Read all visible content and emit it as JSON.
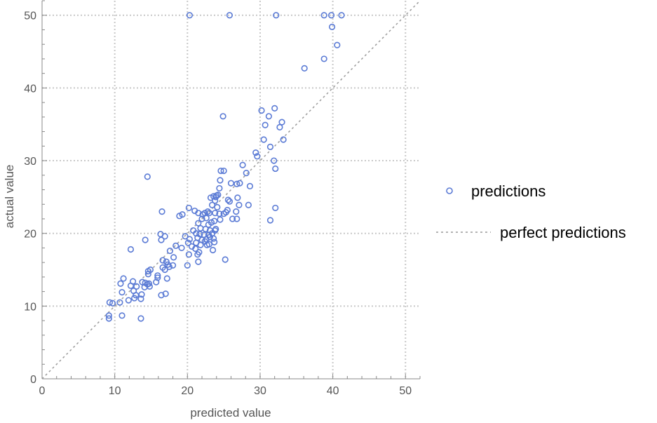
{
  "chart_data": {
    "type": "scatter",
    "xlabel": "predicted value",
    "ylabel": "actual value",
    "xlim": [
      0,
      52
    ],
    "ylim": [
      0,
      52
    ],
    "xticks": [
      0,
      10,
      20,
      30,
      40,
      50
    ],
    "yticks": [
      0,
      10,
      20,
      30,
      40,
      50
    ],
    "grid": true,
    "legend_placement": "right",
    "legend": [
      "predictions",
      "perfect predictions"
    ],
    "colors": {
      "points": "#5b7bd5",
      "reference": "#9a9a9a",
      "grid": "#c8c8c8",
      "axis": "#888888"
    },
    "series": [
      {
        "name": "predictions",
        "points": [
          [
            20.3,
            50
          ],
          [
            25.8,
            50
          ],
          [
            32.2,
            50
          ],
          [
            38.8,
            50
          ],
          [
            39.8,
            50
          ],
          [
            41.2,
            50
          ],
          [
            39.9,
            48.4
          ],
          [
            40.6,
            45.9
          ],
          [
            36.1,
            42.7
          ],
          [
            38.8,
            44
          ],
          [
            24.9,
            36.1
          ],
          [
            30.2,
            36.9
          ],
          [
            31.2,
            36.1
          ],
          [
            32,
            37.2
          ],
          [
            30.7,
            34.9
          ],
          [
            32.7,
            34.6
          ],
          [
            33,
            35.3
          ],
          [
            33.2,
            32.9
          ],
          [
            30.5,
            32.9
          ],
          [
            31.4,
            31.9
          ],
          [
            29.4,
            31.1
          ],
          [
            29.6,
            30.6
          ],
          [
            31.9,
            30
          ],
          [
            32.1,
            28.9
          ],
          [
            27.6,
            29.4
          ],
          [
            24.6,
            28.6
          ],
          [
            25,
            28.6
          ],
          [
            28.1,
            28.3
          ],
          [
            14.5,
            27.8
          ],
          [
            24.5,
            27.3
          ],
          [
            26,
            26.9
          ],
          [
            26.8,
            26.8
          ],
          [
            27.2,
            26.9
          ],
          [
            28.6,
            26.5
          ],
          [
            24.4,
            26.2
          ],
          [
            23.6,
            25.1
          ],
          [
            23.9,
            25
          ],
          [
            24,
            25.2
          ],
          [
            24.2,
            25.3
          ],
          [
            23.2,
            24.9
          ],
          [
            23.8,
            24.5
          ],
          [
            25.6,
            24.6
          ],
          [
            25.8,
            24.4
          ],
          [
            26.9,
            24.9
          ],
          [
            27.1,
            23.9
          ],
          [
            23.4,
            23.9
          ],
          [
            24.1,
            23.6
          ],
          [
            28.4,
            23.9
          ],
          [
            32.1,
            23.5
          ],
          [
            25.5,
            23.2
          ],
          [
            26.7,
            23
          ],
          [
            21.5,
            22.8
          ],
          [
            22.4,
            22.8
          ],
          [
            22.8,
            23
          ],
          [
            22.1,
            22.6
          ],
          [
            23,
            22.8
          ],
          [
            23.8,
            22.8
          ],
          [
            24.4,
            22.7
          ],
          [
            25,
            22.7
          ],
          [
            25.3,
            22.9
          ],
          [
            20.2,
            23.5
          ],
          [
            21,
            23.1
          ],
          [
            19.3,
            22.6
          ],
          [
            18.9,
            22.4
          ],
          [
            16.5,
            23
          ],
          [
            22,
            22
          ],
          [
            22.6,
            22.1
          ],
          [
            23.7,
            21.7
          ],
          [
            24.5,
            21.9
          ],
          [
            26.2,
            22
          ],
          [
            26.8,
            22
          ],
          [
            31.4,
            21.8
          ],
          [
            21.5,
            21.4
          ],
          [
            22.9,
            21.2
          ],
          [
            23.3,
            21.5
          ],
          [
            21.8,
            20.7
          ],
          [
            22.5,
            20.6
          ],
          [
            23.1,
            20.4
          ],
          [
            23.9,
            20.6
          ],
          [
            20.8,
            20.4
          ],
          [
            21.2,
            20
          ],
          [
            21.7,
            19.9
          ],
          [
            22.3,
            19.8
          ],
          [
            22.9,
            19.8
          ],
          [
            23.4,
            20
          ],
          [
            23.8,
            20.4
          ],
          [
            16.3,
            19.9
          ],
          [
            16.9,
            19.6
          ],
          [
            19.7,
            19.6
          ],
          [
            20.3,
            19.2
          ],
          [
            21.4,
            19.4
          ],
          [
            22,
            19.1
          ],
          [
            22.6,
            19.2
          ],
          [
            23.1,
            19.5
          ],
          [
            23.6,
            19.3
          ],
          [
            16.4,
            19.1
          ],
          [
            14.2,
            19.1
          ],
          [
            20.1,
            18.7
          ],
          [
            21.2,
            18.7
          ],
          [
            21.8,
            18.4
          ],
          [
            22.4,
            18.9
          ],
          [
            23,
            18.5
          ],
          [
            23.7,
            18.8
          ],
          [
            18.4,
            18.3
          ],
          [
            19.2,
            18
          ],
          [
            20.6,
            18.2
          ],
          [
            21.1,
            17.9
          ],
          [
            22.7,
            18.4
          ],
          [
            12.2,
            17.8
          ],
          [
            17.6,
            17.6
          ],
          [
            21.6,
            17.4
          ],
          [
            23.5,
            17.7
          ],
          [
            20.2,
            17.1
          ],
          [
            21.4,
            17.1
          ],
          [
            18.1,
            16.7
          ],
          [
            21.5,
            16.1
          ],
          [
            25.2,
            16.4
          ],
          [
            16.6,
            16.3
          ],
          [
            17.1,
            16.1
          ],
          [
            16.6,
            15.3
          ],
          [
            17.3,
            15.7
          ],
          [
            17.5,
            15.4
          ],
          [
            18,
            15.6
          ],
          [
            20,
            15.6
          ],
          [
            16.9,
            15
          ],
          [
            15.9,
            14.2
          ],
          [
            14.6,
            14.8
          ],
          [
            14.9,
            15
          ],
          [
            14.6,
            14.4
          ],
          [
            17.2,
            13.8
          ],
          [
            14.2,
            13.2
          ],
          [
            14.7,
            13.1
          ],
          [
            15.7,
            13.3
          ],
          [
            15.9,
            13.9
          ],
          [
            11.2,
            13.8
          ],
          [
            12.5,
            13.4
          ],
          [
            13.8,
            13.3
          ],
          [
            14.5,
            13
          ],
          [
            10.8,
            13.1
          ],
          [
            12.2,
            12.8
          ],
          [
            13,
            12.7
          ],
          [
            14.1,
            12.6
          ],
          [
            14.8,
            12.7
          ],
          [
            12.6,
            12.1
          ],
          [
            11,
            11.9
          ],
          [
            12.9,
            11.5
          ],
          [
            13.7,
            11.6
          ],
          [
            16.4,
            11.5
          ],
          [
            17,
            11.7
          ],
          [
            12.7,
            11.1
          ],
          [
            13.6,
            11
          ],
          [
            11.9,
            10.8
          ],
          [
            9.3,
            10.5
          ],
          [
            9.7,
            10.4
          ],
          [
            10.7,
            10.5
          ],
          [
            9.2,
            8.7
          ],
          [
            9.2,
            8.3
          ],
          [
            11,
            8.7
          ],
          [
            13.6,
            8.3
          ]
        ]
      },
      {
        "name": "perfect predictions",
        "type": "line",
        "points": [
          [
            0,
            0
          ],
          [
            52,
            52
          ]
        ]
      }
    ]
  }
}
